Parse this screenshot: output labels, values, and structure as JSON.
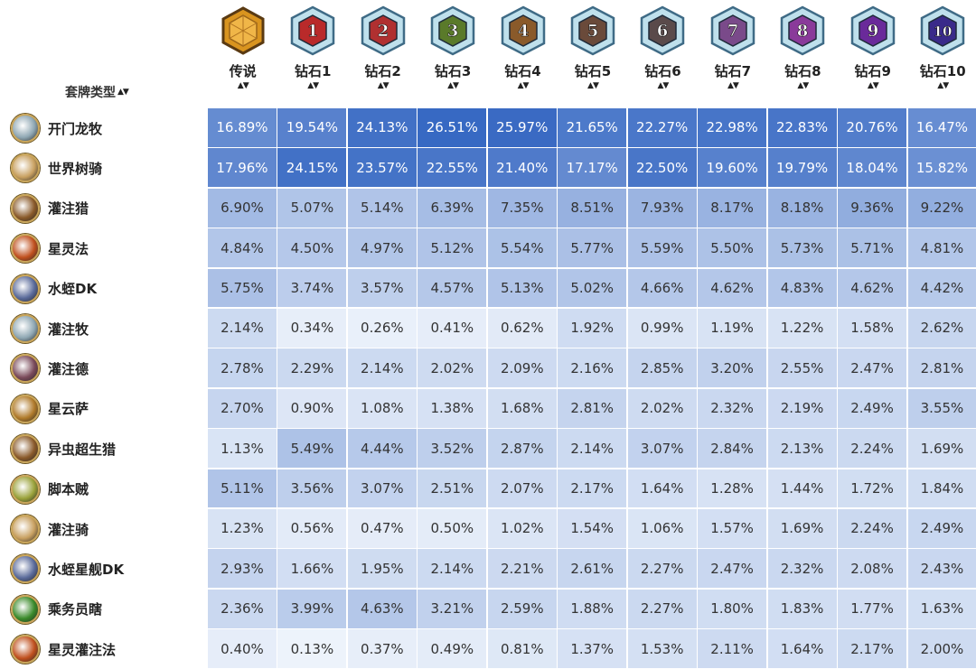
{
  "header": {
    "deck_type_label": "套牌类型",
    "sort_glyph_left": "▲▼",
    "ranks": [
      {
        "label": "传说",
        "badge": "",
        "badge_kind": "legend",
        "color": "#c07a1e"
      },
      {
        "label": "钻石1",
        "badge": "1",
        "badge_kind": "diamond",
        "color": "#b92a2a"
      },
      {
        "label": "钻石2",
        "badge": "2",
        "badge_kind": "diamond",
        "color": "#b03030"
      },
      {
        "label": "钻石3",
        "badge": "3",
        "badge_kind": "diamond",
        "color": "#5a7a2a"
      },
      {
        "label": "钻石4",
        "badge": "4",
        "badge_kind": "diamond",
        "color": "#8a5a2a"
      },
      {
        "label": "钻石5",
        "badge": "5",
        "badge_kind": "diamond",
        "color": "#6a4a3a"
      },
      {
        "label": "钻石6",
        "badge": "6",
        "badge_kind": "diamond",
        "color": "#5a4a4a"
      },
      {
        "label": "钻石7",
        "badge": "7",
        "badge_kind": "diamond",
        "color": "#7a4a8a"
      },
      {
        "label": "钻石8",
        "badge": "8",
        "badge_kind": "diamond",
        "color": "#8a3a9a"
      },
      {
        "label": "钻石9",
        "badge": "9",
        "badge_kind": "diamond",
        "color": "#6a2a9a"
      },
      {
        "label": "钻石10",
        "badge": "10",
        "badge_kind": "diamond",
        "color": "#3a2a8a"
      }
    ],
    "sort_glyph": "▲▼"
  },
  "rows": [
    {
      "name": "开门龙牧",
      "icon": "priest-deck-icon",
      "icon_color": "#8fa7b3",
      "values": [
        "16.89%",
        "19.54%",
        "24.13%",
        "26.51%",
        "25.97%",
        "21.65%",
        "22.27%",
        "22.98%",
        "22.83%",
        "20.76%",
        "16.47%"
      ]
    },
    {
      "name": "世界树骑",
      "icon": "paladin-deck-icon",
      "icon_color": "#c8a060",
      "values": [
        "17.96%",
        "24.15%",
        "23.57%",
        "22.55%",
        "21.40%",
        "17.17%",
        "22.50%",
        "19.60%",
        "19.79%",
        "18.04%",
        "15.82%"
      ]
    },
    {
      "name": "灌注猎",
      "icon": "hunter-deck-icon",
      "icon_color": "#8a5a2a",
      "values": [
        "6.90%",
        "5.07%",
        "5.14%",
        "6.39%",
        "7.35%",
        "8.51%",
        "7.93%",
        "8.17%",
        "8.18%",
        "9.36%",
        "9.22%"
      ]
    },
    {
      "name": "星灵法",
      "icon": "mage-deck-icon",
      "icon_color": "#c0501e",
      "values": [
        "4.84%",
        "4.50%",
        "4.97%",
        "5.12%",
        "5.54%",
        "5.77%",
        "5.59%",
        "5.50%",
        "5.73%",
        "5.71%",
        "4.81%"
      ]
    },
    {
      "name": "水蛭DK",
      "icon": "death-knight-deck-icon",
      "icon_color": "#5a6a9a",
      "values": [
        "5.75%",
        "3.74%",
        "3.57%",
        "4.57%",
        "5.13%",
        "5.02%",
        "4.66%",
        "4.62%",
        "4.83%",
        "4.62%",
        "4.42%"
      ]
    },
    {
      "name": "灌注牧",
      "icon": "priest-deck-icon",
      "icon_color": "#8fa7b3",
      "values": [
        "2.14%",
        "0.34%",
        "0.26%",
        "0.41%",
        "0.62%",
        "1.92%",
        "0.99%",
        "1.19%",
        "1.22%",
        "1.58%",
        "2.62%"
      ]
    },
    {
      "name": "灌注德",
      "icon": "druid-deck-icon",
      "icon_color": "#7a4a5a",
      "values": [
        "2.78%",
        "2.29%",
        "2.14%",
        "2.02%",
        "2.09%",
        "2.16%",
        "2.85%",
        "3.20%",
        "2.55%",
        "2.47%",
        "2.81%"
      ]
    },
    {
      "name": "星云萨",
      "icon": "shaman-deck-icon",
      "icon_color": "#b07a2a",
      "values": [
        "2.70%",
        "0.90%",
        "1.08%",
        "1.38%",
        "1.68%",
        "2.81%",
        "2.02%",
        "2.32%",
        "2.19%",
        "2.49%",
        "3.55%"
      ]
    },
    {
      "name": "异虫超生猎",
      "icon": "hunter-deck-icon",
      "icon_color": "#8a5a2a",
      "values": [
        "1.13%",
        "5.49%",
        "4.44%",
        "3.52%",
        "2.87%",
        "2.14%",
        "3.07%",
        "2.84%",
        "2.13%",
        "2.24%",
        "1.69%"
      ]
    },
    {
      "name": "脚本贼",
      "icon": "rogue-deck-icon",
      "icon_color": "#9aa23a",
      "values": [
        "5.11%",
        "3.56%",
        "3.07%",
        "2.51%",
        "2.07%",
        "2.17%",
        "1.64%",
        "1.28%",
        "1.44%",
        "1.72%",
        "1.84%"
      ]
    },
    {
      "name": "灌注骑",
      "icon": "paladin-deck-icon",
      "icon_color": "#c8a060",
      "values": [
        "1.23%",
        "0.56%",
        "0.47%",
        "0.50%",
        "1.02%",
        "1.54%",
        "1.06%",
        "1.57%",
        "1.69%",
        "2.24%",
        "2.49%"
      ]
    },
    {
      "name": "水蛭星舰DK",
      "icon": "death-knight-deck-icon",
      "icon_color": "#5a6a9a",
      "values": [
        "2.93%",
        "1.66%",
        "1.95%",
        "2.14%",
        "2.21%",
        "2.61%",
        "2.27%",
        "2.47%",
        "2.32%",
        "2.08%",
        "2.43%"
      ]
    },
    {
      "name": "乘务员瞎",
      "icon": "demon-hunter-deck-icon",
      "icon_color": "#3a8a2a",
      "values": [
        "2.36%",
        "3.99%",
        "4.63%",
        "3.21%",
        "2.59%",
        "1.88%",
        "2.27%",
        "1.80%",
        "1.83%",
        "1.77%",
        "1.63%"
      ]
    },
    {
      "name": "星灵灌注法",
      "icon": "mage-deck-icon",
      "icon_color": "#c0501e",
      "values": [
        "0.40%",
        "0.13%",
        "0.37%",
        "0.49%",
        "0.81%",
        "1.37%",
        "1.53%",
        "2.11%",
        "1.64%",
        "2.17%",
        "2.00%"
      ]
    }
  ],
  "colors": {
    "scale_low": "#f4f8fd",
    "scale_high": "#3567c2"
  }
}
